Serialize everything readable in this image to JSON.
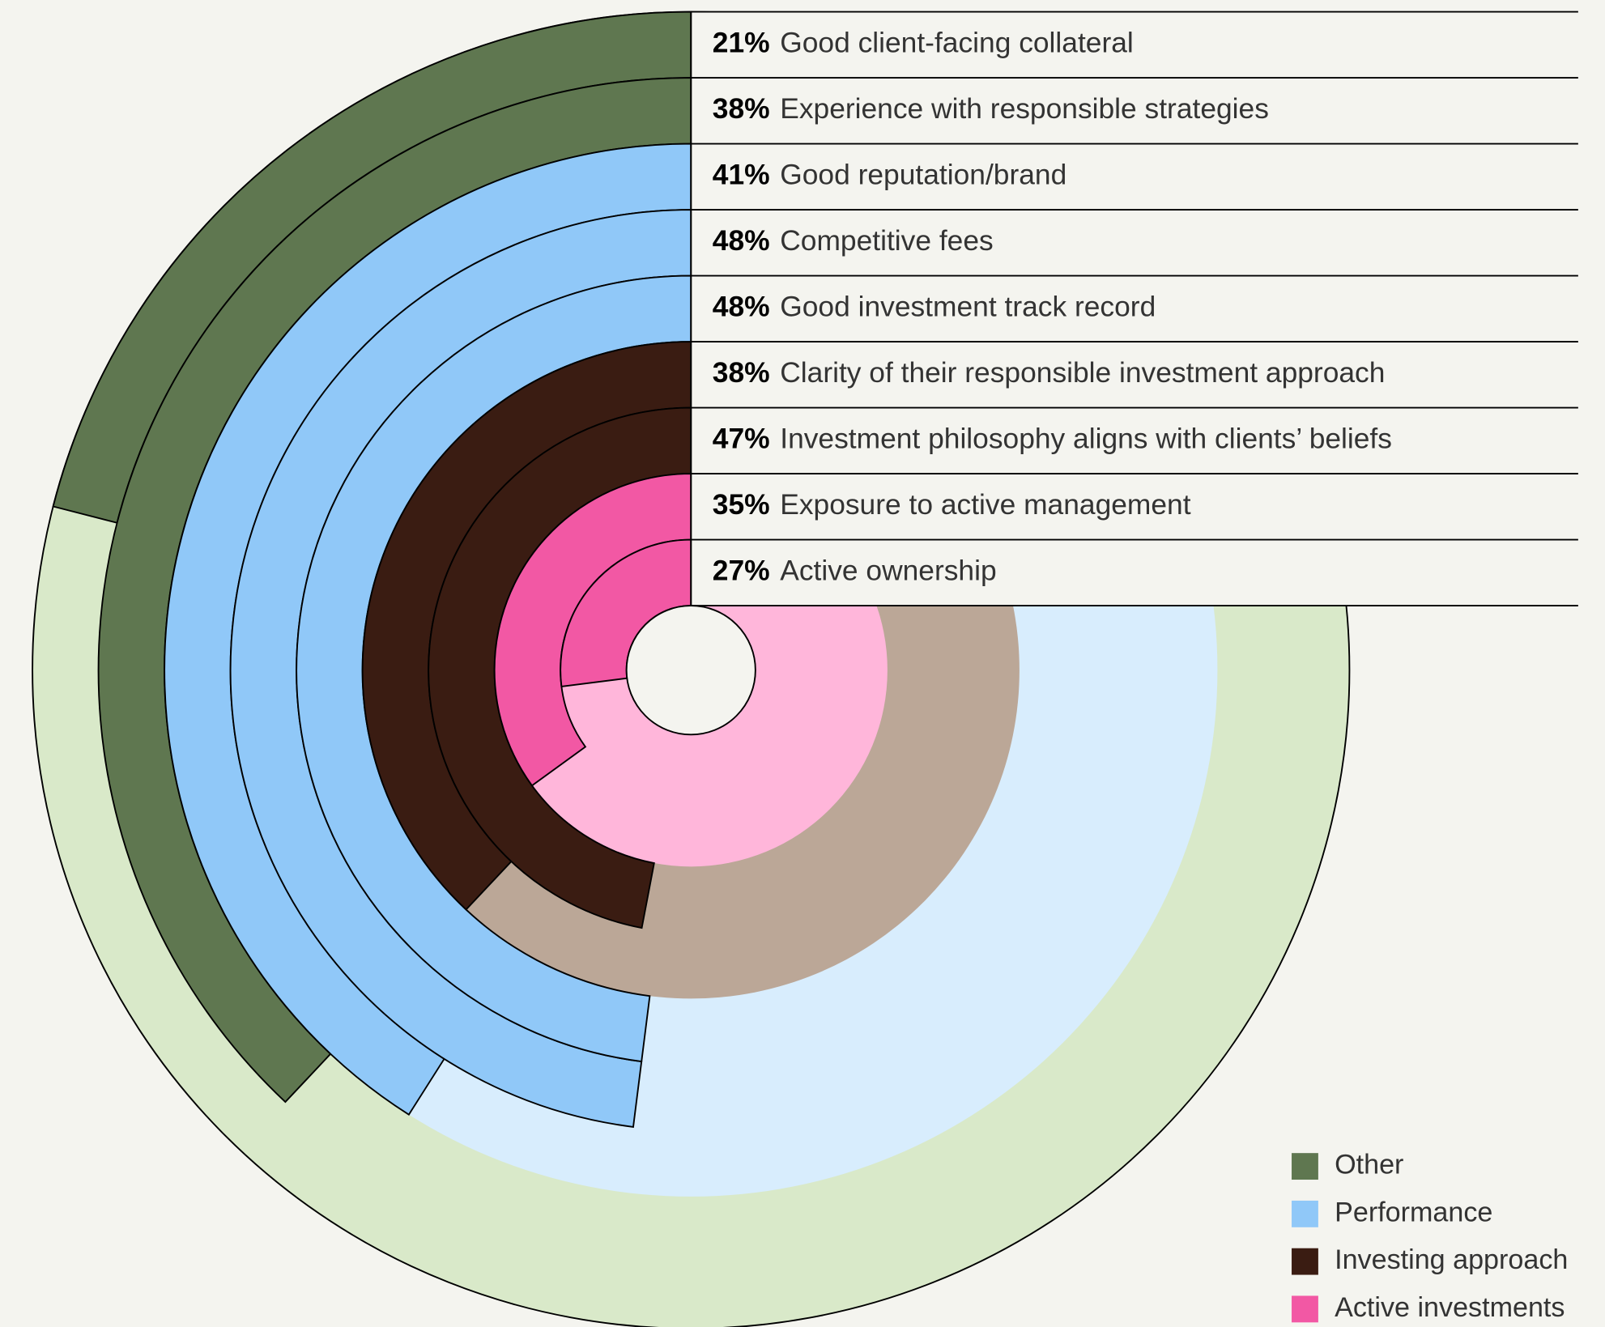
{
  "chart_data": {
    "type": "radial_bar",
    "series": [
      {
        "name": "Other",
        "color": "#5f7750",
        "background": "#d9e9c9",
        "categories": [
          "Good client-facing collateral",
          "Experience with responsible strategies"
        ],
        "values": [
          21,
          38
        ],
        "value_labels": [
          "21%",
          "38%"
        ]
      },
      {
        "name": "Performance",
        "color": "#90c8f8",
        "background": "#d8edfd",
        "categories": [
          "Good reputation/brand",
          "Competitive fees",
          "Good investment track record"
        ],
        "values": [
          41,
          48,
          48
        ],
        "value_labels": [
          "41%",
          "48%",
          "48%"
        ]
      },
      {
        "name": "Investing approach",
        "color": "#3a1c12",
        "background": "#bba797",
        "categories": [
          "Clarity of their responsible investment approach",
          "Investment philosophy aligns with clients’ beliefs"
        ],
        "values": [
          38,
          47
        ],
        "value_labels": [
          "38%",
          "47%"
        ]
      },
      {
        "name": "Active investments",
        "color": "#f258a4",
        "background": "#ffb6da",
        "categories": [
          "Exposure to active management",
          "Active ownership"
        ],
        "values": [
          35,
          27
        ],
        "value_labels": [
          "35%",
          "27%"
        ]
      }
    ],
    "scale_max": 100
  }
}
